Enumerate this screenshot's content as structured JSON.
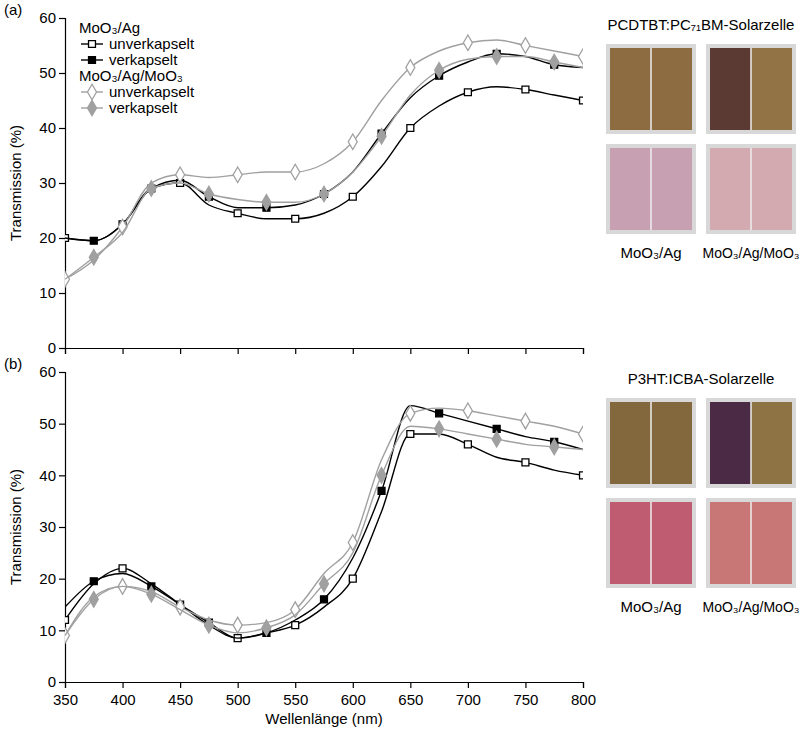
{
  "chart_data": [
    {
      "type": "line",
      "panel": "(a)",
      "title": "PCDTBT:PC₇₁BM-Solarzelle",
      "y_label": "Transmission (%)",
      "annotations": [
        "MoO₃/Ag",
        "MoO₃/Ag/MoO₃"
      ],
      "xlim": [
        350,
        800
      ],
      "xticks": [
        350,
        400,
        450,
        500,
        550,
        600,
        650,
        700,
        750,
        800
      ],
      "ylim": [
        0,
        60
      ],
      "yticks": [
        0,
        10,
        20,
        30,
        40,
        50,
        60
      ],
      "tick_labels": "y",
      "legend": "upper left",
      "x": [
        350,
        375,
        400,
        425,
        450,
        475,
        500,
        525,
        550,
        575,
        600,
        625,
        650,
        675,
        700,
        725,
        750,
        775,
        800
      ],
      "series": [
        {
          "group": "MoO₃/Ag",
          "name": "unverkapselt",
          "color": "#000000",
          "marker": "open-square",
          "values": [
            20,
            19.5,
            22.5,
            29,
            30,
            26,
            24.5,
            23.5,
            23.5,
            24.5,
            27.5,
            33,
            40,
            44,
            46.5,
            47.5,
            47,
            46,
            45
          ]
        },
        {
          "group": "MoO₃/Ag",
          "name": "verkapselt",
          "color": "#000000",
          "marker": "filled-square",
          "values": [
            20,
            19.5,
            22.5,
            29,
            30.5,
            27.5,
            25.5,
            25.5,
            26,
            28,
            32,
            39,
            45.5,
            49.5,
            52,
            53.5,
            53,
            51.5,
            51
          ]
        },
        {
          "group": "MoO₃/Ag/MoO₃",
          "name": "unverkapselt",
          "color": "#a0a0a0",
          "marker": "open-diamond",
          "values": [
            12.5,
            16,
            22,
            30,
            31.5,
            31,
            31.5,
            32,
            32,
            33.5,
            37.5,
            45,
            51,
            54,
            55.5,
            56,
            55,
            54,
            53
          ]
        },
        {
          "group": "MoO₃/Ag/MoO₃",
          "name": "verkapselt",
          "color": "#a0a0a0",
          "marker": "filled-diamond",
          "values": [
            12.5,
            16.5,
            21,
            29,
            30,
            28,
            27,
            26.5,
            26.5,
            28,
            32,
            38.5,
            46,
            50.5,
            52.5,
            53,
            53,
            52,
            51
          ]
        }
      ]
    },
    {
      "type": "line",
      "panel": "(b)",
      "title": "P3HT:ICBA-Solarzelle",
      "x_label": "Wellenlänge (nm)",
      "y_label": "Transmission (%)",
      "annotations": [
        "MoO₃/Ag",
        "MoO₃/Ag/MoO₃"
      ],
      "xlim": [
        350,
        800
      ],
      "xticks": [
        350,
        400,
        450,
        500,
        550,
        600,
        650,
        700,
        750,
        800
      ],
      "ylim": [
        0,
        60
      ],
      "yticks": [
        0,
        10,
        20,
        30,
        40,
        50,
        60
      ],
      "x": [
        350,
        375,
        400,
        425,
        450,
        475,
        500,
        525,
        550,
        575,
        600,
        625,
        650,
        675,
        700,
        725,
        750,
        775,
        800
      ],
      "series": [
        {
          "color": "#000000",
          "marker": "open-square",
          "values": [
            12,
            19,
            22,
            19,
            15,
            11,
            8.5,
            9.5,
            11,
            14.5,
            20,
            33,
            48,
            48,
            46,
            43.5,
            42.5,
            41,
            40
          ]
        },
        {
          "color": "#000000",
          "marker": "filled-square",
          "values": [
            14.5,
            19.5,
            21,
            18.5,
            15,
            11.5,
            8.5,
            9.5,
            12,
            16,
            24,
            37,
            53.5,
            52,
            50.5,
            49,
            47.5,
            46.5,
            45
          ]
        },
        {
          "color": "#a0a0a0",
          "marker": "open-diamond",
          "values": [
            9,
            16.5,
            18.5,
            17.5,
            14.5,
            12,
            11,
            11.5,
            14,
            21,
            27,
            43,
            52,
            53,
            52.5,
            51.5,
            50.5,
            49.5,
            48
          ]
        },
        {
          "color": "#a0a0a0",
          "marker": "filled-diamond",
          "values": [
            9,
            16,
            18.5,
            17,
            14,
            11,
            9.5,
            10.5,
            13,
            19,
            25,
            40,
            49.5,
            49,
            48,
            47,
            46,
            45.5,
            45
          ]
        }
      ]
    }
  ]
}
